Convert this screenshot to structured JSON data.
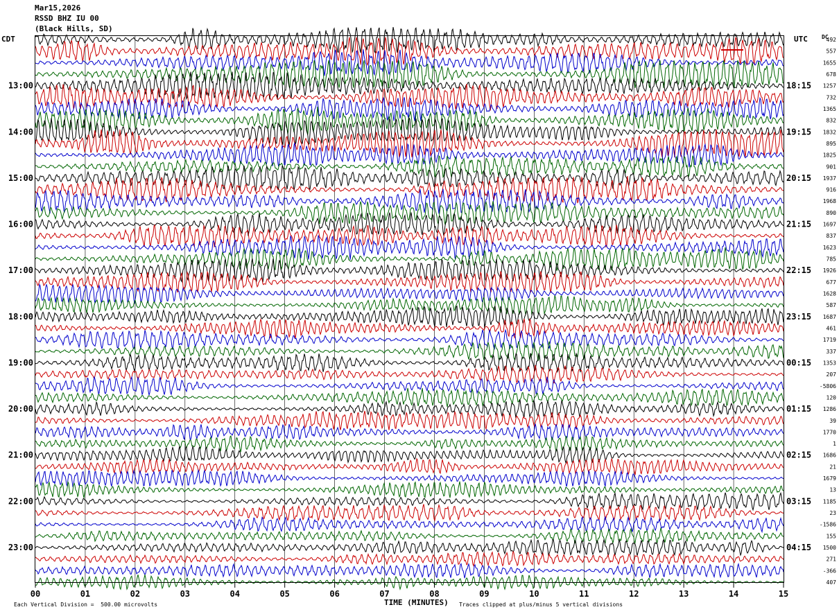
{
  "header": {
    "date": "Mar15,2026",
    "station": "RSSD BHZ IU 00",
    "location": "(Black Hills, SD)"
  },
  "left_zone_label": "CDT",
  "right_zone_label": "UTC",
  "dc_label": "DC",
  "footer": {
    "scale_note": "Each Vertical Division =  500.00 microvolts",
    "clip_note": "Traces clipped at plus/minus 5 vertical divisions"
  },
  "colors": {
    "trace_cycle": [
      "#000000",
      "#cc0000",
      "#0000cc",
      "#006600"
    ],
    "grid": "#000000"
  },
  "chart_data": {
    "type": "line",
    "title": "",
    "xlabel": "TIME (MINUTES)",
    "ylabel": "",
    "xlim": [
      0,
      15
    ],
    "x_ticks": [
      "00",
      "01",
      "02",
      "03",
      "04",
      "05",
      "06",
      "07",
      "08",
      "09",
      "10",
      "11",
      "12",
      "13",
      "14",
      "15"
    ],
    "rows_per_hour": 4,
    "row_count": 48,
    "left_time_labels": [
      {
        "row": 4,
        "label": "13:00"
      },
      {
        "row": 8,
        "label": "14:00"
      },
      {
        "row": 12,
        "label": "15:00"
      },
      {
        "row": 16,
        "label": "16:00"
      },
      {
        "row": 20,
        "label": "17:00"
      },
      {
        "row": 24,
        "label": "18:00"
      },
      {
        "row": 28,
        "label": "19:00"
      },
      {
        "row": 32,
        "label": "20:00"
      },
      {
        "row": 36,
        "label": "21:00"
      },
      {
        "row": 40,
        "label": "22:00"
      },
      {
        "row": 44,
        "label": "23:00"
      }
    ],
    "right_time_labels": [
      {
        "row": 4,
        "label": "18:15"
      },
      {
        "row": 8,
        "label": "19:15"
      },
      {
        "row": 12,
        "label": "20:15"
      },
      {
        "row": 16,
        "label": "21:15"
      },
      {
        "row": 20,
        "label": "22:15"
      },
      {
        "row": 24,
        "label": "23:15"
      },
      {
        "row": 28,
        "label": "00:15"
      },
      {
        "row": 32,
        "label": "01:15"
      },
      {
        "row": 36,
        "label": "02:15"
      },
      {
        "row": 40,
        "label": "03:15"
      },
      {
        "row": 44,
        "label": "04:15"
      }
    ],
    "dc_offsets": [
      "492",
      "557",
      "1655",
      "678",
      "1257",
      "732",
      "1365",
      "832",
      "1832",
      "895",
      "1825",
      "901",
      "1937",
      "916",
      "1968",
      "890",
      "1697",
      "837",
      "1623",
      "785",
      "1926",
      "677",
      "1628",
      "587",
      "1687",
      "461",
      "1719",
      "337",
      "1353",
      "207",
      "-5806",
      "120",
      "1286",
      "39",
      "1770",
      "1",
      "1686",
      "21",
      "1679",
      "13",
      "1185",
      "23",
      "-1586",
      "155",
      "1500",
      "271",
      "-366",
      "407"
    ],
    "amplitude_profile": [
      0.85,
      0.95,
      0.8,
      0.9,
      0.9,
      0.8,
      0.75,
      0.85,
      0.85,
      0.85,
      0.75,
      0.7,
      0.8,
      0.8,
      0.75,
      0.7,
      0.7,
      0.7,
      0.75,
      0.7,
      0.7,
      0.65,
      0.6,
      0.6,
      0.65,
      0.65,
      0.6,
      0.6,
      0.6,
      0.55,
      0.55,
      0.55,
      0.55,
      0.55,
      0.5,
      0.5,
      0.55,
      0.5,
      0.5,
      0.5,
      0.5,
      0.5,
      0.45,
      0.45,
      0.5,
      0.45,
      0.45,
      0.45
    ]
  }
}
